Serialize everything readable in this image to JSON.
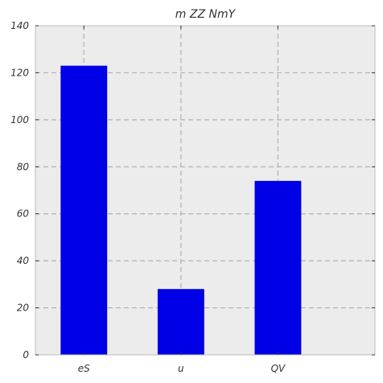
{
  "chart_data": {
    "type": "bar",
    "title": "m ZZ NmY",
    "xlabel": "",
    "ylabel": "",
    "categories": [
      "eS",
      "u",
      "QV"
    ],
    "values": [
      123,
      28,
      74
    ],
    "ylim": [
      0,
      140
    ],
    "yticks": [
      0,
      20,
      40,
      60,
      80,
      100,
      120,
      140
    ],
    "grid": true,
    "legend": "none"
  },
  "colors": {
    "bar": "#0000e6",
    "plot_background": "#ececec",
    "grid": "#b0b0b0",
    "text": "#333333"
  }
}
